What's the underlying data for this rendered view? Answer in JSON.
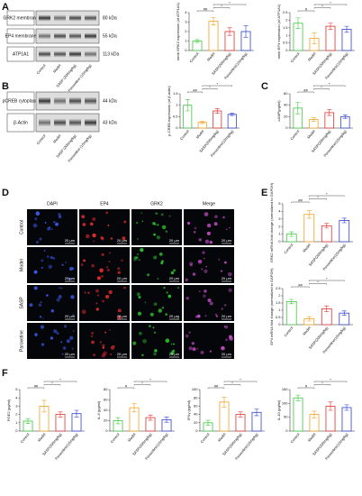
{
  "figure": {
    "panel_labels": [
      "A",
      "B",
      "C",
      "D",
      "E",
      "F"
    ],
    "blot_a": {
      "rows": [
        "GRK2 membrane",
        "EP4 membrane",
        "ATP1A1"
      ],
      "sizes": [
        "80 kDa",
        "55 kDa",
        "113 kDa"
      ],
      "lanes": [
        "Control",
        "Model",
        "SASP (200mg/kg)",
        "Paroxetine (15mg/kg)"
      ]
    },
    "blot_b": {
      "rows": [
        "pCREB cytoplasm",
        "β-Actin"
      ],
      "sizes": [
        "44 kDa",
        "43 kDa"
      ],
      "lanes": [
        "Control",
        "Model",
        "SASP (200mg/kg)",
        "Paroxetine (15mg/kg)"
      ]
    },
    "microscopy": {
      "columns": [
        "DAPI",
        "EP4",
        "GRK2",
        "Merge"
      ],
      "rows": [
        "Control",
        "Model",
        "SASP",
        "Paroxetine"
      ],
      "scale": "20 μm"
    }
  },
  "chart_data": [
    {
      "type": "bar",
      "y_label": "mmb GRK2 expression (of ATP1A1)",
      "categories": [
        "Control",
        "Model",
        "SASP(200mg/kg)",
        "Paroxetine(15mg/kg)"
      ],
      "values": [
        1,
        3.1,
        2,
        2
      ],
      "errors": [
        0.15,
        0.4,
        0.4,
        0.6
      ],
      "colors": [
        "#3ec83e",
        "#f0a020",
        "#e03030",
        "#3040d0"
      ],
      "ylim": [
        0,
        4
      ],
      "yticks": [
        0,
        1,
        2,
        3,
        4
      ],
      "annotations": [
        "##",
        "*",
        "*"
      ]
    },
    {
      "type": "bar",
      "y_label": "mmb EP4 expression (of ATP1A1)",
      "categories": [
        "Control",
        "Model",
        "SASP(200mg/kg)",
        "Paroxetine(15mg/kg)"
      ],
      "values": [
        1.8,
        0.8,
        1.6,
        1.4
      ],
      "errors": [
        0.35,
        0.35,
        0.2,
        0.2
      ],
      "colors": [
        "#3ec83e",
        "#f0a020",
        "#e03030",
        "#3040d0"
      ],
      "ylim": [
        0,
        2.5
      ],
      "yticks": [
        0,
        0.5,
        1,
        1.5,
        2,
        2.5
      ],
      "annotations": [
        "#",
        "*",
        "*"
      ]
    },
    {
      "type": "bar",
      "y_label": "p-CREB expression (of β-actin)",
      "categories": [
        "Control",
        "Model",
        "SASP(200mg/kg)",
        "Paroxetine(15mg/kg)"
      ],
      "values": [
        1,
        0.25,
        0.75,
        0.6
      ],
      "errors": [
        0.25,
        0.05,
        0.1,
        0.05
      ],
      "colors": [
        "#3ec83e",
        "#f0a020",
        "#e03030",
        "#3040d0"
      ],
      "ylim": [
        0,
        1.5
      ],
      "yticks": [
        0,
        0.5,
        1,
        1.5
      ],
      "annotations": [
        "##",
        "*",
        "*"
      ]
    },
    {
      "type": "bar",
      "y_label": "cAMP(pg/ml)",
      "categories": [
        "Control",
        "Model",
        "SASP(200mg/kg)",
        "Paroxetine(15mg/kg)"
      ],
      "values": [
        35,
        15,
        27,
        20
      ],
      "errors": [
        10,
        3,
        5,
        3
      ],
      "colors": [
        "#3ec83e",
        "#f0a020",
        "#e03030",
        "#3040d0"
      ],
      "ylim": [
        0,
        60
      ],
      "yticks": [
        0,
        20,
        40,
        60
      ],
      "annotations": [
        "##",
        "*",
        "*"
      ]
    },
    {
      "type": "bar",
      "y_label": "GRK2 mRNA fold change (normalized to GAPDH)",
      "categories": [
        "Control",
        "Model",
        "SASP(200mg/kg)",
        "Paroxetine(15mg/kg)"
      ],
      "values": [
        1,
        3.6,
        2.1,
        2.8
      ],
      "errors": [
        0.3,
        0.5,
        0.3,
        0.3
      ],
      "colors": [
        "#3ec83e",
        "#f0a020",
        "#e03030",
        "#3040d0"
      ],
      "ylim": [
        0,
        5
      ],
      "yticks": [
        0,
        1,
        2,
        3,
        4,
        5
      ],
      "annotations": [
        "##",
        "*",
        "*"
      ]
    },
    {
      "type": "bar",
      "y_label": "EP4 mRNA fold change (normalized to GAPDH)",
      "categories": [
        "Control",
        "Model",
        "SASP(200mg/kg)",
        "Paroxetine(15mg/kg)"
      ],
      "values": [
        1.6,
        0.4,
        1.1,
        0.8
      ],
      "errors": [
        0.15,
        0.15,
        0.2,
        0.15
      ],
      "colors": [
        "#3ec83e",
        "#f0a020",
        "#e03030",
        "#3040d0"
      ],
      "ylim": [
        0,
        2.5
      ],
      "yticks": [
        0,
        0.5,
        1,
        1.5,
        2,
        2.5
      ],
      "annotations": [
        "##",
        "*",
        "*"
      ]
    },
    {
      "type": "bar",
      "y_label": "PGE2 (pg/ml)",
      "categories": [
        "Control",
        "Model",
        "SASP(200mg/kg)",
        "Paroxetine(15mg/kg)"
      ],
      "values": [
        1.2,
        3,
        2,
        2.1
      ],
      "errors": [
        0.3,
        0.7,
        0.3,
        0.4
      ],
      "colors": [
        "#3ec83e",
        "#f0a020",
        "#e03030",
        "#3040d0"
      ],
      "ylim": [
        0,
        5
      ],
      "yticks": [
        0,
        1,
        2,
        3,
        4,
        5
      ],
      "annotations": [
        "##",
        "*",
        "*"
      ]
    },
    {
      "type": "bar",
      "y_label": "IL-6 (pg/ml)",
      "categories": [
        "Control",
        "Model",
        "SASP(200mg/kg)",
        "Paroxetine(15mg/kg)"
      ],
      "values": [
        20,
        45,
        26,
        22
      ],
      "errors": [
        6,
        8,
        5,
        5
      ],
      "colors": [
        "#3ec83e",
        "#f0a020",
        "#e03030",
        "#3040d0"
      ],
      "ylim": [
        0,
        80
      ],
      "yticks": [
        0,
        20,
        40,
        60,
        80
      ],
      "annotations": [
        "#",
        "*",
        "*"
      ]
    },
    {
      "type": "bar",
      "y_label": "IFNγ (pg/ml)",
      "categories": [
        "Control",
        "Model",
        "SASP(200mg/kg)",
        "Paroxetine(15mg/kg)"
      ],
      "values": [
        20,
        70,
        40,
        45
      ],
      "errors": [
        6,
        12,
        6,
        8
      ],
      "colors": [
        "#3ec83e",
        "#f0a020",
        "#e03030",
        "#3040d0"
      ],
      "ylim": [
        0,
        100
      ],
      "yticks": [
        0,
        20,
        40,
        60,
        80,
        100
      ],
      "annotations": [
        "##",
        "*",
        "*"
      ]
    },
    {
      "type": "bar",
      "y_label": "IL-10 (pg/ml)",
      "categories": [
        "Control",
        "Model",
        "SASP(200mg/kg)",
        "Paroxetine(15mg/kg)"
      ],
      "values": [
        120,
        60,
        90,
        85
      ],
      "errors": [
        10,
        12,
        15,
        10
      ],
      "colors": [
        "#3ec83e",
        "#f0a020",
        "#e03030",
        "#3040d0"
      ],
      "ylim": [
        0,
        150
      ],
      "yticks": [
        0,
        50,
        100,
        150
      ],
      "annotations": [
        "#",
        "*",
        "*"
      ]
    }
  ]
}
